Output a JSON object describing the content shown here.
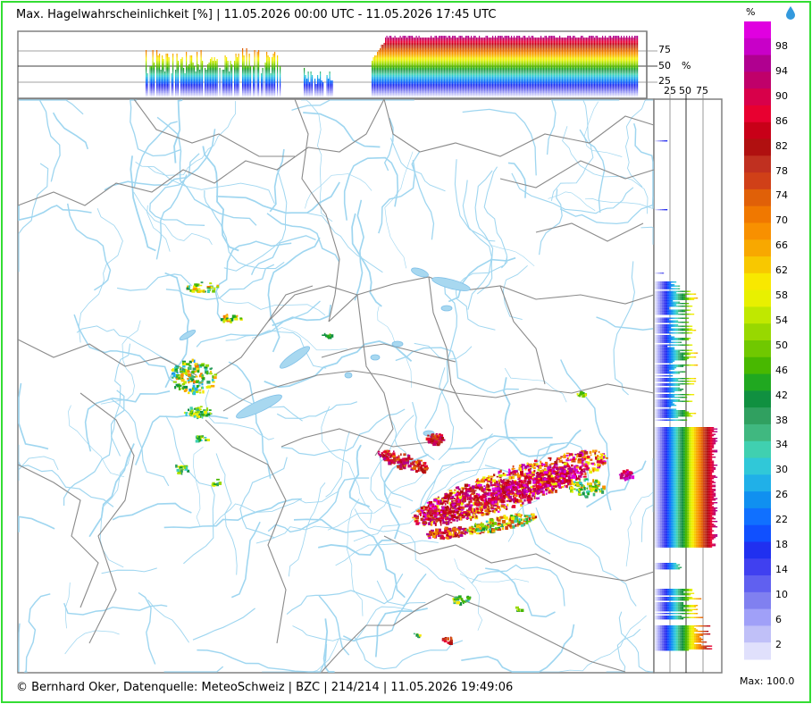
{
  "title": "Max. Hagelwahrscheinlichkeit [%] | 11.05.2026 00:00 UTC - 11.05.2026 17:45 UTC",
  "footer": "© Bernhard Oker, Datenquelle: MeteoSchweiz | BZC | 214/214 | 11.05.2026 19:49:06",
  "legend": {
    "unit": "%",
    "max_label": "Max: 100.0",
    "labels": [
      "98",
      "94",
      "90",
      "86",
      "82",
      "78",
      "74",
      "70",
      "66",
      "62",
      "58",
      "54",
      "50",
      "46",
      "42",
      "38",
      "34",
      "30",
      "26",
      "22",
      "18",
      "14",
      "10",
      "6",
      "2"
    ],
    "colors": [
      "#e000e0",
      "#c800c8",
      "#b00090",
      "#c0006a",
      "#d8004a",
      "#e80030",
      "#c80018",
      "#b01010",
      "#c03020",
      "#d04018",
      "#e06008",
      "#f07800",
      "#f89000",
      "#f8a800",
      "#f8c800",
      "#f8e800",
      "#e8f000",
      "#c0e800",
      "#98d800",
      "#70c800",
      "#48b800",
      "#20a820",
      "#109040",
      "#30a060",
      "#40b880",
      "#40d0b0",
      "#30c8d8",
      "#20b0e8",
      "#1090f0",
      "#1070ff",
      "#1050ff",
      "#2030f0",
      "#4040f0",
      "#6060f0",
      "#8080f0",
      "#a0a0f8",
      "#c0c0f8",
      "#e0e0fc"
    ],
    "drop_icon": "water-drop-icon"
  },
  "top_panel": {
    "y_ticks": [
      "75",
      "50",
      "25"
    ],
    "unit": "%"
  },
  "right_panel": {
    "x_ticks": [
      "25",
      "50",
      "75"
    ]
  }
}
